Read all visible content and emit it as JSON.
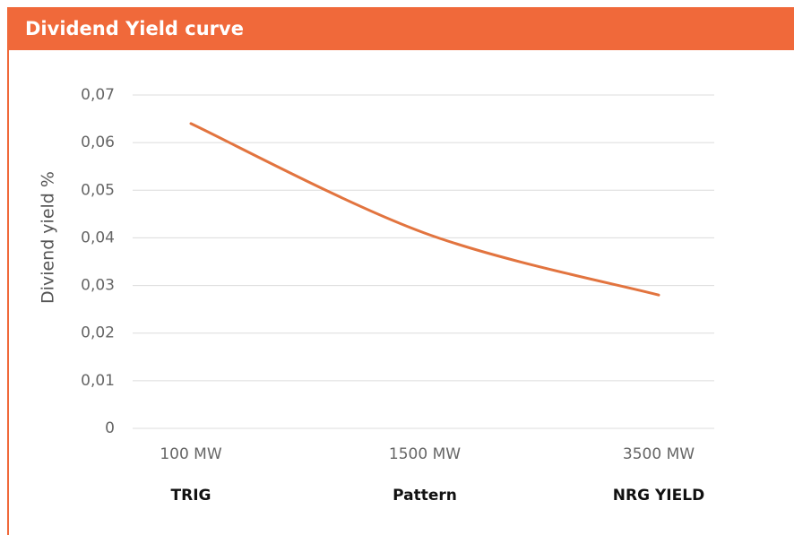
{
  "chart_data": {
    "type": "line",
    "title": "Dividend Yield curve",
    "ylabel": "Diviend yield %",
    "categories": [
      "100 MW",
      "1500 MW",
      "3500 MW"
    ],
    "company_labels": [
      "TRIG",
      "Pattern",
      "NRG YIELD"
    ],
    "values": [
      0.064,
      0.041,
      0.028
    ],
    "color": "#e2743f",
    "ylim": [
      0,
      0.07
    ],
    "yticks": [
      0,
      {
        "value": 0.01,
        "label": "0,01"
      },
      {
        "value": 0.02,
        "label": "0,02"
      },
      {
        "value": 0.03,
        "label": "0,03"
      },
      {
        "value": 0.04,
        "label": "0,04"
      },
      {
        "value": 0.05,
        "label": "0,05"
      },
      {
        "value": 0.06,
        "label": "0,06"
      },
      {
        "value": 0.07,
        "label": "0,07"
      }
    ],
    "grid": true
  }
}
